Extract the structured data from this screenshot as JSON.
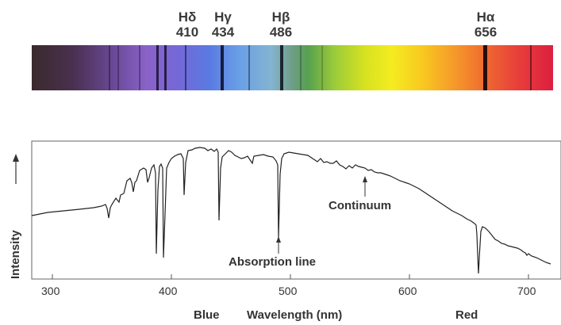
{
  "lines": [
    {
      "symbol": "Hδ",
      "wavelength": "410"
    },
    {
      "symbol": "Hγ",
      "wavelength": "434"
    },
    {
      "symbol": "Hβ",
      "wavelength": "486"
    },
    {
      "symbol": "Hα",
      "wavelength": "656"
    }
  ],
  "annotations": {
    "continuum": "Continuum",
    "absorption_line": "Absorption line"
  },
  "axis": {
    "ylabel": "Intensity",
    "xlabel": "Wavelength (nm)",
    "blue_label": "Blue",
    "red_label": "Red",
    "ticks": [
      "300",
      "400",
      "500",
      "600",
      "700"
    ]
  },
  "colors": {
    "line": "#222222",
    "frame": "#555555"
  }
}
